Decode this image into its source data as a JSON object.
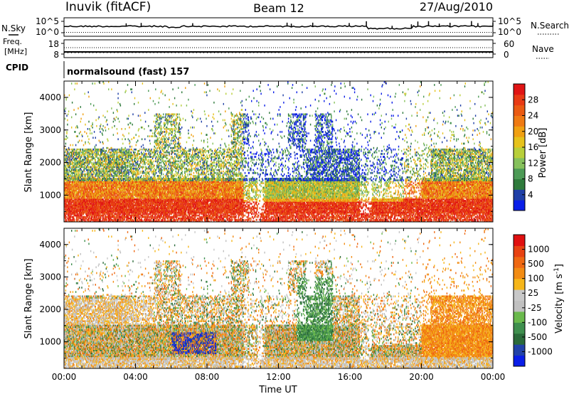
{
  "header": {
    "station": "Inuvik (fitACF)",
    "beam": "Beam 12",
    "date": "27/Aug/2010"
  },
  "noise_panel": {
    "left_label": "N.Sky",
    "left_ticks": [
      "10^5",
      "10^0"
    ],
    "right_label": "N.Search",
    "right_ticks": [
      "10^5",
      "10^0"
    ]
  },
  "freq_panel": {
    "left_label_1": "Freq.",
    "left_label_2": "[MHz]",
    "left_ticks": [
      "18",
      "8"
    ],
    "right_label": "Nave",
    "right_ticks": [
      "60",
      "0"
    ],
    "cpid_label": "CPID"
  },
  "cpid_panel": {
    "text": "normalsound (fast) 157"
  },
  "colors": {
    "power": [
      "#0a1ee8",
      "#1f3fa6",
      "#2f7a3c",
      "#4d9a56",
      "#86c15c",
      "#b8cf3a",
      "#e6c21b",
      "#f0a012",
      "#ef7a13",
      "#ea5a12",
      "#e83a14",
      "#e01414"
    ],
    "velocity": [
      "#0a1ee8",
      "#2242a8",
      "#2b6a3a",
      "#3f8f4e",
      "#6ab94c",
      "#c0c0c0",
      "#c8c8c8",
      "#f6b61a",
      "#f28c14",
      "#ef6812",
      "#e84212",
      "#e01010"
    ]
  },
  "chart_data": [
    {
      "type": "heatmap",
      "name_on_chart": "Power",
      "ylabel": "Slant Range [km]",
      "yticks": [
        "1000",
        "2000",
        "3000",
        "4000"
      ],
      "ylim": [
        180,
        4500
      ],
      "xlim": [
        "00:00",
        "24:00"
      ],
      "colorbar": {
        "label": "Power [dB]",
        "ticks": [
          "4",
          "8",
          "12",
          "16",
          "20",
          "24",
          "28"
        ],
        "range": [
          0,
          32
        ]
      }
    },
    {
      "type": "heatmap",
      "name_on_chart": "Velocity",
      "ylabel": "Slant Range [km]",
      "yticks": [
        "1000",
        "2000",
        "3000",
        "4000"
      ],
      "ylim": [
        180,
        4500
      ],
      "xlabel": "Time UT",
      "xticks": [
        "00:00",
        "04:00",
        "08:00",
        "12:00",
        "16:00",
        "20:00",
        "00:00"
      ],
      "colorbar": {
        "label": "Velocity [m s",
        "label_sup": "-1",
        "label_end": "]",
        "ticks": [
          "1000",
          "500",
          "100",
          "25",
          "-25",
          "-100",
          "-500",
          "-1000"
        ]
      }
    }
  ]
}
